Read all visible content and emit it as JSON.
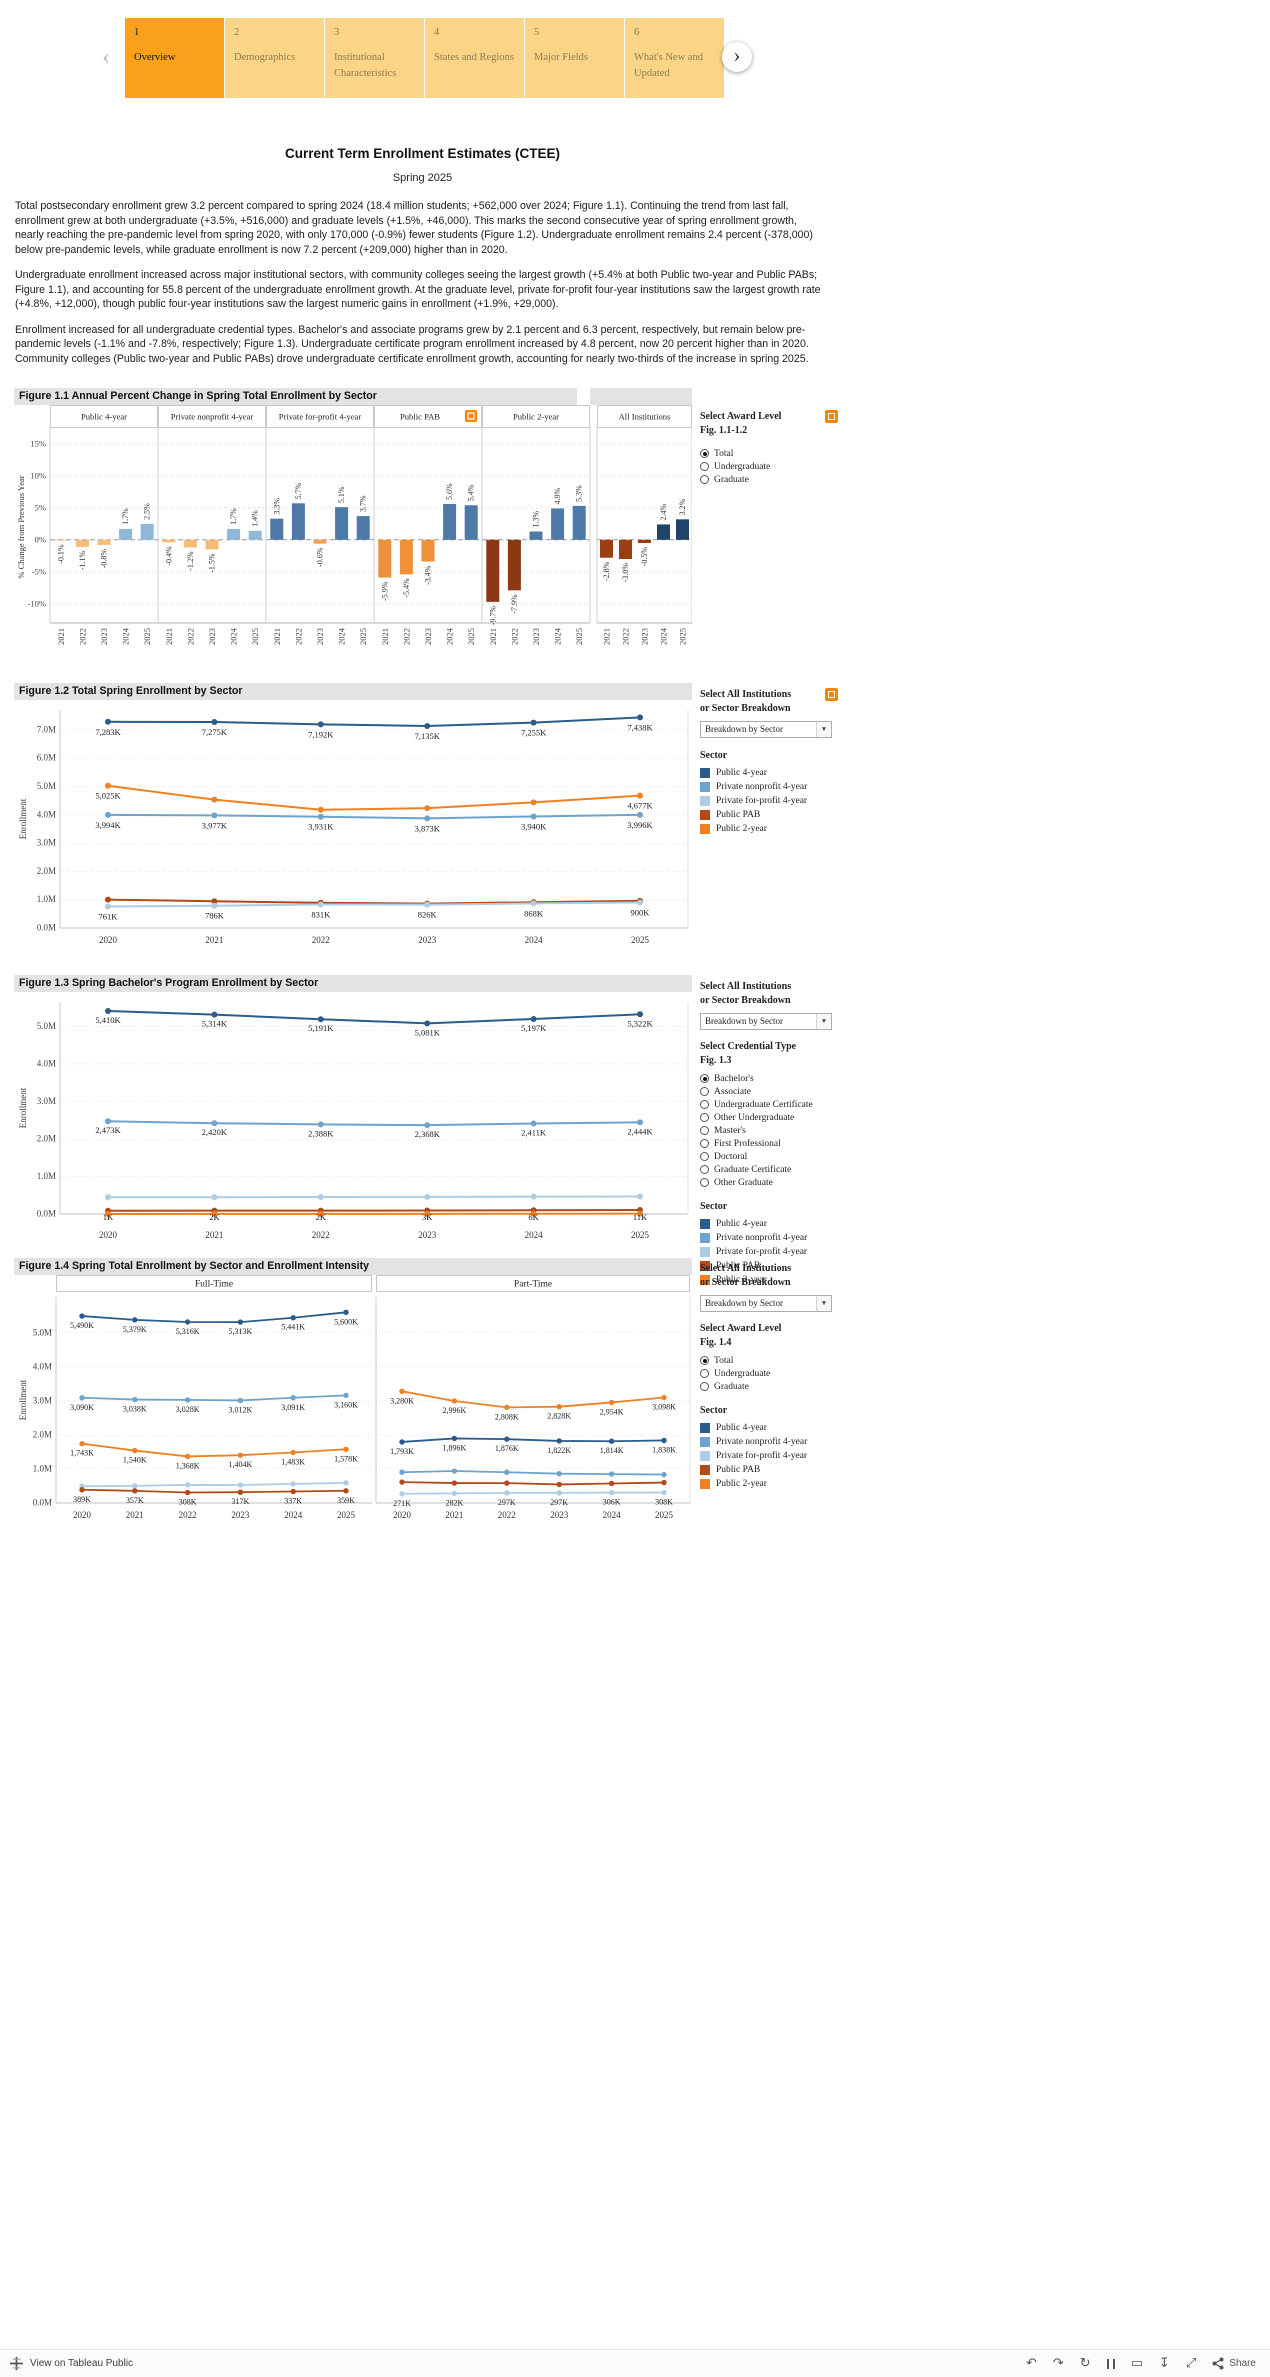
{
  "nav": {
    "prev_icon": "‹",
    "next_icon": "›",
    "tabs": [
      {
        "number": "1",
        "label": "Overview",
        "active": true
      },
      {
        "number": "2",
        "label": "Demographics",
        "active": false
      },
      {
        "number": "3",
        "label": "Institutional Characteristics",
        "active": false
      },
      {
        "number": "4",
        "label": "States and Regions",
        "active": false
      },
      {
        "number": "5",
        "label": "Major Fields",
        "active": false
      },
      {
        "number": "6",
        "label": "What's New and Updated",
        "active": false
      }
    ]
  },
  "header": {
    "title": "Current Term Enrollment Estimates (CTEE)",
    "subtitle": "Spring 2025"
  },
  "paragraphs": [
    "Total postsecondary enrollment grew 3.2 percent compared to spring 2024 (18.4 million students; +562,000 over 2024; Figure 1.1). Continuing the trend from last fall, enrollment grew at both undergraduate (+3.5%, +516,000) and graduate levels (+1.5%, +46,000). This marks the second consecutive year of spring enrollment growth, nearly reaching the pre-pandemic level from spring 2020, with only 170,000 (-0.9%) fewer students (Figure 1.2). Undergraduate enrollment remains 2.4 percent (-378,000) below pre-pandemic levels, while graduate enrollment is now 7.2 percent (+209,000) higher than in 2020.",
    "Undergraduate enrollment increased across major institutional sectors, with community colleges seeing the largest growth (+5.4% at both Public two-year and Public PABs; Figure 1.1), and accounting for 55.8 percent of the undergraduate enrollment growth. At the graduate level, private for-profit four-year institutions saw the largest growth rate (+4.8%, +12,000), though public four-year institutions saw the largest numeric gains in enrollment (+1.9%, +29,000).",
    "Enrollment increased for all undergraduate credential types. Bachelor's and associate programs grew by 2.1 percent and 6.3 percent, respectively, but remain below pre-pandemic levels (-1.1% and -7.8%, respectively; Figure 1.3). Undergraduate certificate program enrollment increased by 4.8 percent, now 20 percent higher than in 2020. Community colleges (Public two-year and Public PABs) drove undergraduate certificate enrollment growth, accounting for nearly two-thirds of the increase in spring 2025."
  ],
  "colors": {
    "public4": "#2B5C8A",
    "nonprofit": "#6FA3CC",
    "forprofit": "#AECDE4",
    "pab": "#B04A17",
    "public2": "#EF8122",
    "accent_orange": "#F28705"
  },
  "chart_data": [
    {
      "id": "fig11",
      "type": "bar",
      "title": "Figure 1.1 Annual Percent Change in Spring Total Enrollment by Sector",
      "ylabel": "% Change from Previous Year",
      "ylim": [
        -13,
        17
      ],
      "yticks": [
        15,
        10,
        5,
        0,
        -5,
        -10
      ],
      "categories": [
        "2021",
        "2022",
        "2023",
        "2024",
        "2025"
      ],
      "panels": [
        {
          "sector": "Public 4-year",
          "values": [
            -0.1,
            -1.1,
            -0.8,
            1.7,
            2.5
          ],
          "labels": [
            "-0.1%",
            "-1.1%",
            "-0.8%",
            "1.7%",
            "2.5%"
          ],
          "pos_color": "#8FB8D8",
          "neg_color": "#F5BC77"
        },
        {
          "sector": "Private nonprofit 4-year",
          "values": [
            -0.4,
            -1.2,
            -1.5,
            1.7,
            1.4
          ],
          "labels": [
            "-0.4%",
            "-1.2%",
            "-1.5%",
            "1.7%",
            "1.4%"
          ],
          "pos_color": "#8FB8D8",
          "neg_color": "#F5BC77"
        },
        {
          "sector": "Private for-profit 4-year",
          "values": [
            3.3,
            5.7,
            -0.6,
            5.1,
            3.7
          ],
          "labels": [
            "3.3%",
            "5.7%",
            "-0.6%",
            "5.1%",
            "3.7%"
          ],
          "pos_color": "#4E79A7",
          "neg_color": "#F2A04E"
        },
        {
          "sector": "Public PAB",
          "values": [
            -5.9,
            -5.4,
            -3.4,
            5.6,
            5.4
          ],
          "labels": [
            "-5.9%",
            "-5.4%",
            "-3.4%",
            "5.6%",
            "5.4%"
          ],
          "pos_color": "#4E79A7",
          "neg_color": "#EE9138",
          "info_icon": true
        },
        {
          "sector": "Public 2-year",
          "values": [
            -9.7,
            -7.9,
            1.3,
            4.9,
            5.3
          ],
          "labels": [
            "-9.7%",
            "-7.9%",
            "1.3%",
            "4.9%",
            "5.3%"
          ],
          "pos_color": "#4E79A7",
          "neg_color": "#8C3815"
        },
        {
          "sector": "All Institutions",
          "values": [
            -2.8,
            -3.0,
            -0.5,
            2.4,
            3.2
          ],
          "labels": [
            "-2.8%",
            "-3.0%",
            "-0.5%",
            "2.4%",
            "3.2%"
          ],
          "pos_color": "#1F4466",
          "neg_color": "#9C3F10",
          "separate": true
        }
      ]
    },
    {
      "id": "fig12",
      "type": "line",
      "title": "Figure 1.2 Total Spring Enrollment by Sector",
      "ylabel": "Enrollment",
      "x": [
        "2020",
        "2021",
        "2022",
        "2023",
        "2024",
        "2025"
      ],
      "ylim": [
        0,
        7.7
      ],
      "yticks": [
        "0.0M",
        "1.0M",
        "2.0M",
        "3.0M",
        "4.0M",
        "5.0M",
        "6.0M",
        "7.0M"
      ],
      "series": [
        {
          "name": "Public 4-year",
          "color_key": "public4",
          "values": [
            7283,
            7275,
            7192,
            7135,
            7255,
            7438
          ],
          "labels": [
            "7,283K",
            "7,275K",
            "7,192K",
            "7,135K",
            "7,255K",
            "7,438K"
          ]
        },
        {
          "name": "Public 2-year",
          "color_key": "public2",
          "values": [
            5025,
            4534,
            4176,
            4232,
            4437,
            4677
          ],
          "labels": [
            "5,025K",
            "",
            "",
            "",
            "",
            "4,677K"
          ]
        },
        {
          "name": "Private nonprofit 4-year",
          "color_key": "nonprofit",
          "values": [
            3994,
            3977,
            3931,
            3873,
            3940,
            3996
          ],
          "labels": [
            "3,994K",
            "3,977K",
            "3,931K",
            "3,873K",
            "3,940K",
            "3,996K"
          ]
        },
        {
          "name": "Public PAB",
          "color_key": "pab",
          "values": [
            1002,
            943,
            892,
            862,
            910,
            959
          ],
          "labels": [
            "",
            "",
            "",
            "",
            "",
            ""
          ]
        },
        {
          "name": "Private for-profit 4-year",
          "color_key": "forprofit",
          "values": [
            761,
            786,
            831,
            826,
            868,
            900
          ],
          "labels": [
            "761K",
            "786K",
            "831K",
            "826K",
            "868K",
            "900K"
          ]
        }
      ]
    },
    {
      "id": "fig13",
      "type": "line",
      "title": "Figure 1.3 Spring Bachelor's Program Enrollment by Sector",
      "ylabel": "Enrollment",
      "x": [
        "2020",
        "2021",
        "2022",
        "2023",
        "2024",
        "2025"
      ],
      "ylim": [
        0,
        5.65
      ],
      "yticks": [
        "0.0M",
        "1.0M",
        "2.0M",
        "3.0M",
        "4.0M",
        "5.0M"
      ],
      "series": [
        {
          "name": "Public 4-year",
          "color_key": "public4",
          "values": [
            5410,
            5314,
            5191,
            5081,
            5197,
            5322
          ],
          "labels": [
            "5,410K",
            "5,314K",
            "5,191K",
            "5,081K",
            "5,197K",
            "5,322K"
          ]
        },
        {
          "name": "Private nonprofit 4-year",
          "color_key": "nonprofit",
          "values": [
            2473,
            2420,
            2388,
            2368,
            2411,
            2444
          ],
          "labels": [
            "2,473K",
            "2,420K",
            "2,388K",
            "2,368K",
            "2,411K",
            "2,444K"
          ]
        },
        {
          "name": "Private for-profit 4-year",
          "color_key": "forprofit",
          "values": [
            445,
            448,
            452,
            458,
            462,
            468
          ],
          "labels": [
            "",
            "",
            "",
            "",
            "",
            ""
          ]
        },
        {
          "name": "Public PAB",
          "color_key": "pab",
          "values": [
            88,
            89,
            90,
            92,
            99,
            108
          ],
          "labels": [
            "",
            "",
            "",
            "",
            "",
            ""
          ]
        },
        {
          "name": "Public 2-year",
          "color_key": "public2",
          "values": [
            1,
            2,
            2,
            3,
            6,
            11
          ],
          "labels": [
            "1K",
            "2K",
            "2K",
            "3K",
            "6K",
            "11K"
          ]
        }
      ]
    },
    {
      "id": "fig14",
      "type": "line",
      "title": "Figure 1.4 Spring Total Enrollment by Sector and Enrollment Intensity",
      "ylabel": "Enrollment",
      "x": [
        "2020",
        "2021",
        "2022",
        "2023",
        "2024",
        "2025"
      ],
      "ylim": [
        0,
        6.05
      ],
      "yticks": [
        "0.0M",
        "1.0M",
        "2.0M",
        "3.0M",
        "4.0M",
        "5.0M"
      ],
      "panels": [
        {
          "name": "Full-Time",
          "series": [
            {
              "name": "Public 4-year",
              "color_key": "public4",
              "values": [
                5490,
                5379,
                5316,
                5313,
                5441,
                5600
              ],
              "labels": [
                "5,490K",
                "5,379K",
                "5,316K",
                "5,313K",
                "5,441K",
                "5,600K"
              ]
            },
            {
              "name": "Private nonprofit 4-year",
              "color_key": "nonprofit",
              "values": [
                3090,
                3038,
                3028,
                3012,
                3091,
                3160
              ],
              "labels": [
                "3,090K",
                "3,038K",
                "3,028K",
                "3,012K",
                "3,091K",
                "3,160K"
              ]
            },
            {
              "name": "Public 2-year",
              "color_key": "public2",
              "values": [
                1743,
                1540,
                1368,
                1404,
                1483,
                1578
              ],
              "labels": [
                "1,743K",
                "1,540K",
                "1,368K",
                "1,404K",
                "1,483K",
                "1,578K"
              ]
            },
            {
              "name": "Private for-profit 4-year",
              "color_key": "forprofit",
              "values": [
                490,
                504,
                534,
                529,
                562,
                592
              ],
              "labels": [
                "",
                "",
                "",
                "",
                "",
                ""
              ]
            },
            {
              "name": "Public PAB",
              "color_key": "pab",
              "values": [
                389,
                357,
                308,
                317,
                337,
                359
              ],
              "labels": [
                "389K",
                "357K",
                "308K",
                "317K",
                "337K",
                "359K"
              ]
            }
          ]
        },
        {
          "name": "Part-Time",
          "series": [
            {
              "name": "Public 2-year",
              "color_key": "public2",
              "values": [
                3280,
                2996,
                2808,
                2828,
                2954,
                3098
              ],
              "labels": [
                "3,280K",
                "2,996K",
                "2,808K",
                "2,828K",
                "2,954K",
                "3,098K"
              ]
            },
            {
              "name": "Public 4-year",
              "color_key": "public4",
              "values": [
                1793,
                1896,
                1876,
                1822,
                1814,
                1838
              ],
              "labels": [
                "1,793K",
                "1,896K",
                "1,876K",
                "1,822K",
                "1,814K",
                "1,838K"
              ]
            },
            {
              "name": "Private nonprofit 4-year",
              "color_key": "nonprofit",
              "values": [
                904,
                939,
                903,
                861,
                849,
                836
              ],
              "labels": [
                "",
                "",
                "",
                "",
                "",
                ""
              ]
            },
            {
              "name": "Public PAB",
              "color_key": "pab",
              "values": [
                613,
                586,
                584,
                545,
                573,
                600
              ],
              "labels": [
                "",
                "",
                "",
                "",
                "",
                ""
              ]
            },
            {
              "name": "Private for-profit 4-year",
              "color_key": "forprofit",
              "values": [
                271,
                282,
                297,
                297,
                306,
                308
              ],
              "labels": [
                "271K",
                "282K",
                "297K",
                "297K",
                "306K",
                "308K"
              ]
            }
          ]
        }
      ]
    }
  ],
  "side_panels": {
    "fig11": {
      "title_lines": [
        "Select Award Level",
        "Fig. 1.1-1.2"
      ],
      "has_info_icon": true,
      "groups": [
        {
          "title_lines": [],
          "options": [
            "Total",
            "Undergraduate",
            "Graduate"
          ],
          "selected": 0
        }
      ]
    },
    "fig12": {
      "title_lines": [
        "Select All Institutions",
        "or Sector Breakdown"
      ],
      "has_info_icon": true,
      "dropdown": "Breakdown by Sector",
      "legend_title": "Sector",
      "legend": [
        {
          "label": "Public 4-year",
          "color_key": "public4"
        },
        {
          "label": "Private nonprofit 4-year",
          "color_key": "nonprofit"
        },
        {
          "label": "Private for-profit 4-year",
          "color_key": "forprofit"
        },
        {
          "label": "Public PAB",
          "color_key": "pab"
        },
        {
          "label": "Public 2-year",
          "color_key": "public2"
        }
      ]
    },
    "fig13": {
      "title_lines": [
        "Select All Institutions",
        "or Sector Breakdown"
      ],
      "dropdown": "Breakdown by Sector",
      "groups": [
        {
          "title_lines": [
            "Select Credential Type",
            "Fig. 1.3"
          ],
          "options": [
            "Bachelor's",
            "Associate",
            "Undergraduate Certificate",
            "Other Undergraduate",
            "Master's",
            "First Professional",
            "Doctoral",
            "Graduate Certificate",
            "Other Graduate"
          ],
          "selected": 0
        }
      ],
      "legend_title": "Sector",
      "legend": [
        {
          "label": "Public 4-year",
          "color_key": "public4"
        },
        {
          "label": "Private nonprofit 4-year",
          "color_key": "nonprofit"
        },
        {
          "label": "Private for-profit 4-year",
          "color_key": "forprofit"
        },
        {
          "label": "Public PAB",
          "color_key": "pab"
        },
        {
          "label": "Public 2-year",
          "color_key": "public2"
        }
      ]
    },
    "fig14": {
      "title_lines": [
        "Select All Institutions",
        "or Sector Breakdown"
      ],
      "dropdown": "Breakdown by Sector",
      "groups": [
        {
          "title_lines": [
            "Select Award Level",
            "Fig. 1.4"
          ],
          "options": [
            "Total",
            "Undergraduate",
            "Graduate"
          ],
          "selected": 0
        }
      ],
      "legend_title": "Sector",
      "legend": [
        {
          "label": "Public 4-year",
          "color_key": "public4"
        },
        {
          "label": "Private nonprofit 4-year",
          "color_key": "nonprofit"
        },
        {
          "label": "Private for-profit 4-year",
          "color_key": "forprofit"
        },
        {
          "label": "Public PAB",
          "color_key": "pab"
        },
        {
          "label": "Public 2-year",
          "color_key": "public2"
        }
      ]
    }
  },
  "footer": {
    "left_label": "View on Tableau Public",
    "share_label": "Share",
    "icons": [
      "undo-icon",
      "redo-icon",
      "replay-icon",
      "pause-icon",
      "display-icon",
      "download-icon",
      "fullscreen-icon"
    ]
  }
}
